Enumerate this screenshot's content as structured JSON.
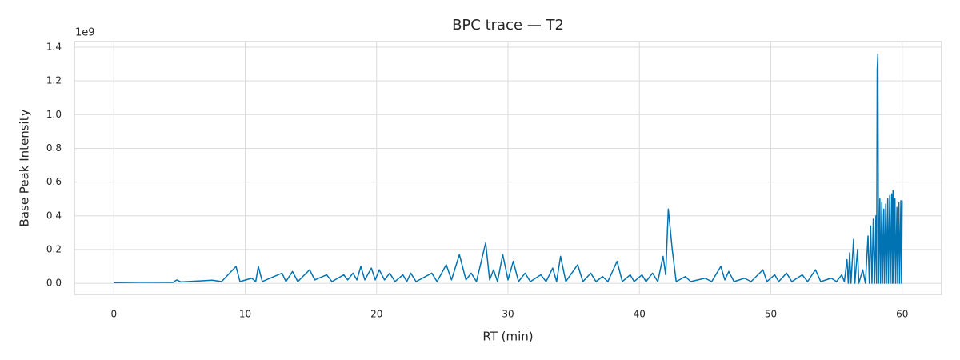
{
  "chart_data": {
    "type": "line",
    "title": "BPC trace — T2",
    "xlabel": "RT (min)",
    "ylabel": "Base Peak Intensity",
    "y_offset_label": "1e9",
    "color": "#0173b2",
    "grid": true,
    "xlim": [
      -3,
      63
    ],
    "ylim": [
      -0.066,
      1.433
    ],
    "xticks": [
      0,
      10,
      20,
      30,
      40,
      50,
      60
    ],
    "yticks": [
      {
        "value": 0,
        "label": "0.0"
      },
      0.2,
      0.4,
      0.6,
      0.8,
      {
        "value": 1,
        "label": "1.0"
      },
      1.2,
      1.4
    ],
    "x": [
      0,
      2,
      4.5,
      4.8,
      5.1,
      7.5,
      8.2,
      9.3,
      9.6,
      10.5,
      10.8,
      11.0,
      11.3,
      12.8,
      13.1,
      13.6,
      14.0,
      14.9,
      15.3,
      16.2,
      16.6,
      17.5,
      17.8,
      18.2,
      18.5,
      18.8,
      19.1,
      19.6,
      19.9,
      20.2,
      20.6,
      21.0,
      21.4,
      22.0,
      22.3,
      22.6,
      23.0,
      24.2,
      24.6,
      25.3,
      25.7,
      26.3,
      26.8,
      27.2,
      27.6,
      28.3,
      28.6,
      28.9,
      29.2,
      29.6,
      30.0,
      30.4,
      30.8,
      31.3,
      31.7,
      32.5,
      32.9,
      33.4,
      33.7,
      34.0,
      34.4,
      35.3,
      35.7,
      36.3,
      36.7,
      37.2,
      37.6,
      38.3,
      38.7,
      39.3,
      39.6,
      40.2,
      40.5,
      41.0,
      41.4,
      41.8,
      42.0,
      42.2,
      42.5,
      42.8,
      43.5,
      43.9,
      45.0,
      45.5,
      46.2,
      46.5,
      46.8,
      47.2,
      48.0,
      48.5,
      49.4,
      49.7,
      50.3,
      50.6,
      51.2,
      51.6,
      52.4,
      52.8,
      53.4,
      53.8,
      54.6,
      55.0,
      55.4,
      55.6,
      55.8,
      55.9,
      56.0,
      56.1,
      56.3,
      56.4,
      56.6,
      56.7,
      57.0,
      57.2,
      57.4,
      57.5,
      57.6,
      57.7,
      57.8,
      57.9,
      58.0,
      58.05,
      58.1,
      58.15,
      58.2,
      58.3,
      58.35,
      58.45,
      58.5,
      58.6,
      58.65,
      58.75,
      58.8,
      58.9,
      58.95,
      59.05,
      59.1,
      59.2,
      59.25,
      59.3,
      59.35,
      59.45,
      59.5,
      59.6,
      59.65,
      59.75,
      59.8,
      59.9,
      59.95,
      60.0
    ],
    "values": [
      0.004,
      0.006,
      0.005,
      0.02,
      0.008,
      0.018,
      0.01,
      0.1,
      0.01,
      0.03,
      0.01,
      0.1,
      0.01,
      0.06,
      0.01,
      0.07,
      0.01,
      0.08,
      0.02,
      0.05,
      0.01,
      0.05,
      0.02,
      0.06,
      0.02,
      0.1,
      0.02,
      0.09,
      0.02,
      0.08,
      0.02,
      0.06,
      0.01,
      0.05,
      0.01,
      0.06,
      0.01,
      0.06,
      0.01,
      0.11,
      0.02,
      0.17,
      0.02,
      0.06,
      0.01,
      0.24,
      0.02,
      0.08,
      0.01,
      0.17,
      0.02,
      0.13,
      0.01,
      0.06,
      0.01,
      0.05,
      0.01,
      0.09,
      0.01,
      0.16,
      0.01,
      0.11,
      0.01,
      0.06,
      0.01,
      0.04,
      0.01,
      0.13,
      0.01,
      0.05,
      0.01,
      0.05,
      0.01,
      0.06,
      0.01,
      0.16,
      0.05,
      0.44,
      0.2,
      0.01,
      0.04,
      0.01,
      0.03,
      0.01,
      0.1,
      0.02,
      0.07,
      0.01,
      0.03,
      0.01,
      0.08,
      0.01,
      0.05,
      0.01,
      0.06,
      0.01,
      0.05,
      0.01,
      0.08,
      0.01,
      0.03,
      0.01,
      0.05,
      0.01,
      0.14,
      0.0,
      0.18,
      0.0,
      0.26,
      0.0,
      0.2,
      0.0,
      0.08,
      0.0,
      0.28,
      0.0,
      0.34,
      0.0,
      0.38,
      0.0,
      0.4,
      0.0,
      1.27,
      1.36,
      0.0,
      0.5,
      0.0,
      0.48,
      0.0,
      0.44,
      0.0,
      0.47,
      0.0,
      0.5,
      0.0,
      0.52,
      0.0,
      0.53,
      0.0,
      0.55,
      0.0,
      0.5,
      0.0,
      0.45,
      0.0,
      0.48,
      0.0,
      0.49,
      0.0,
      0.49
    ]
  }
}
